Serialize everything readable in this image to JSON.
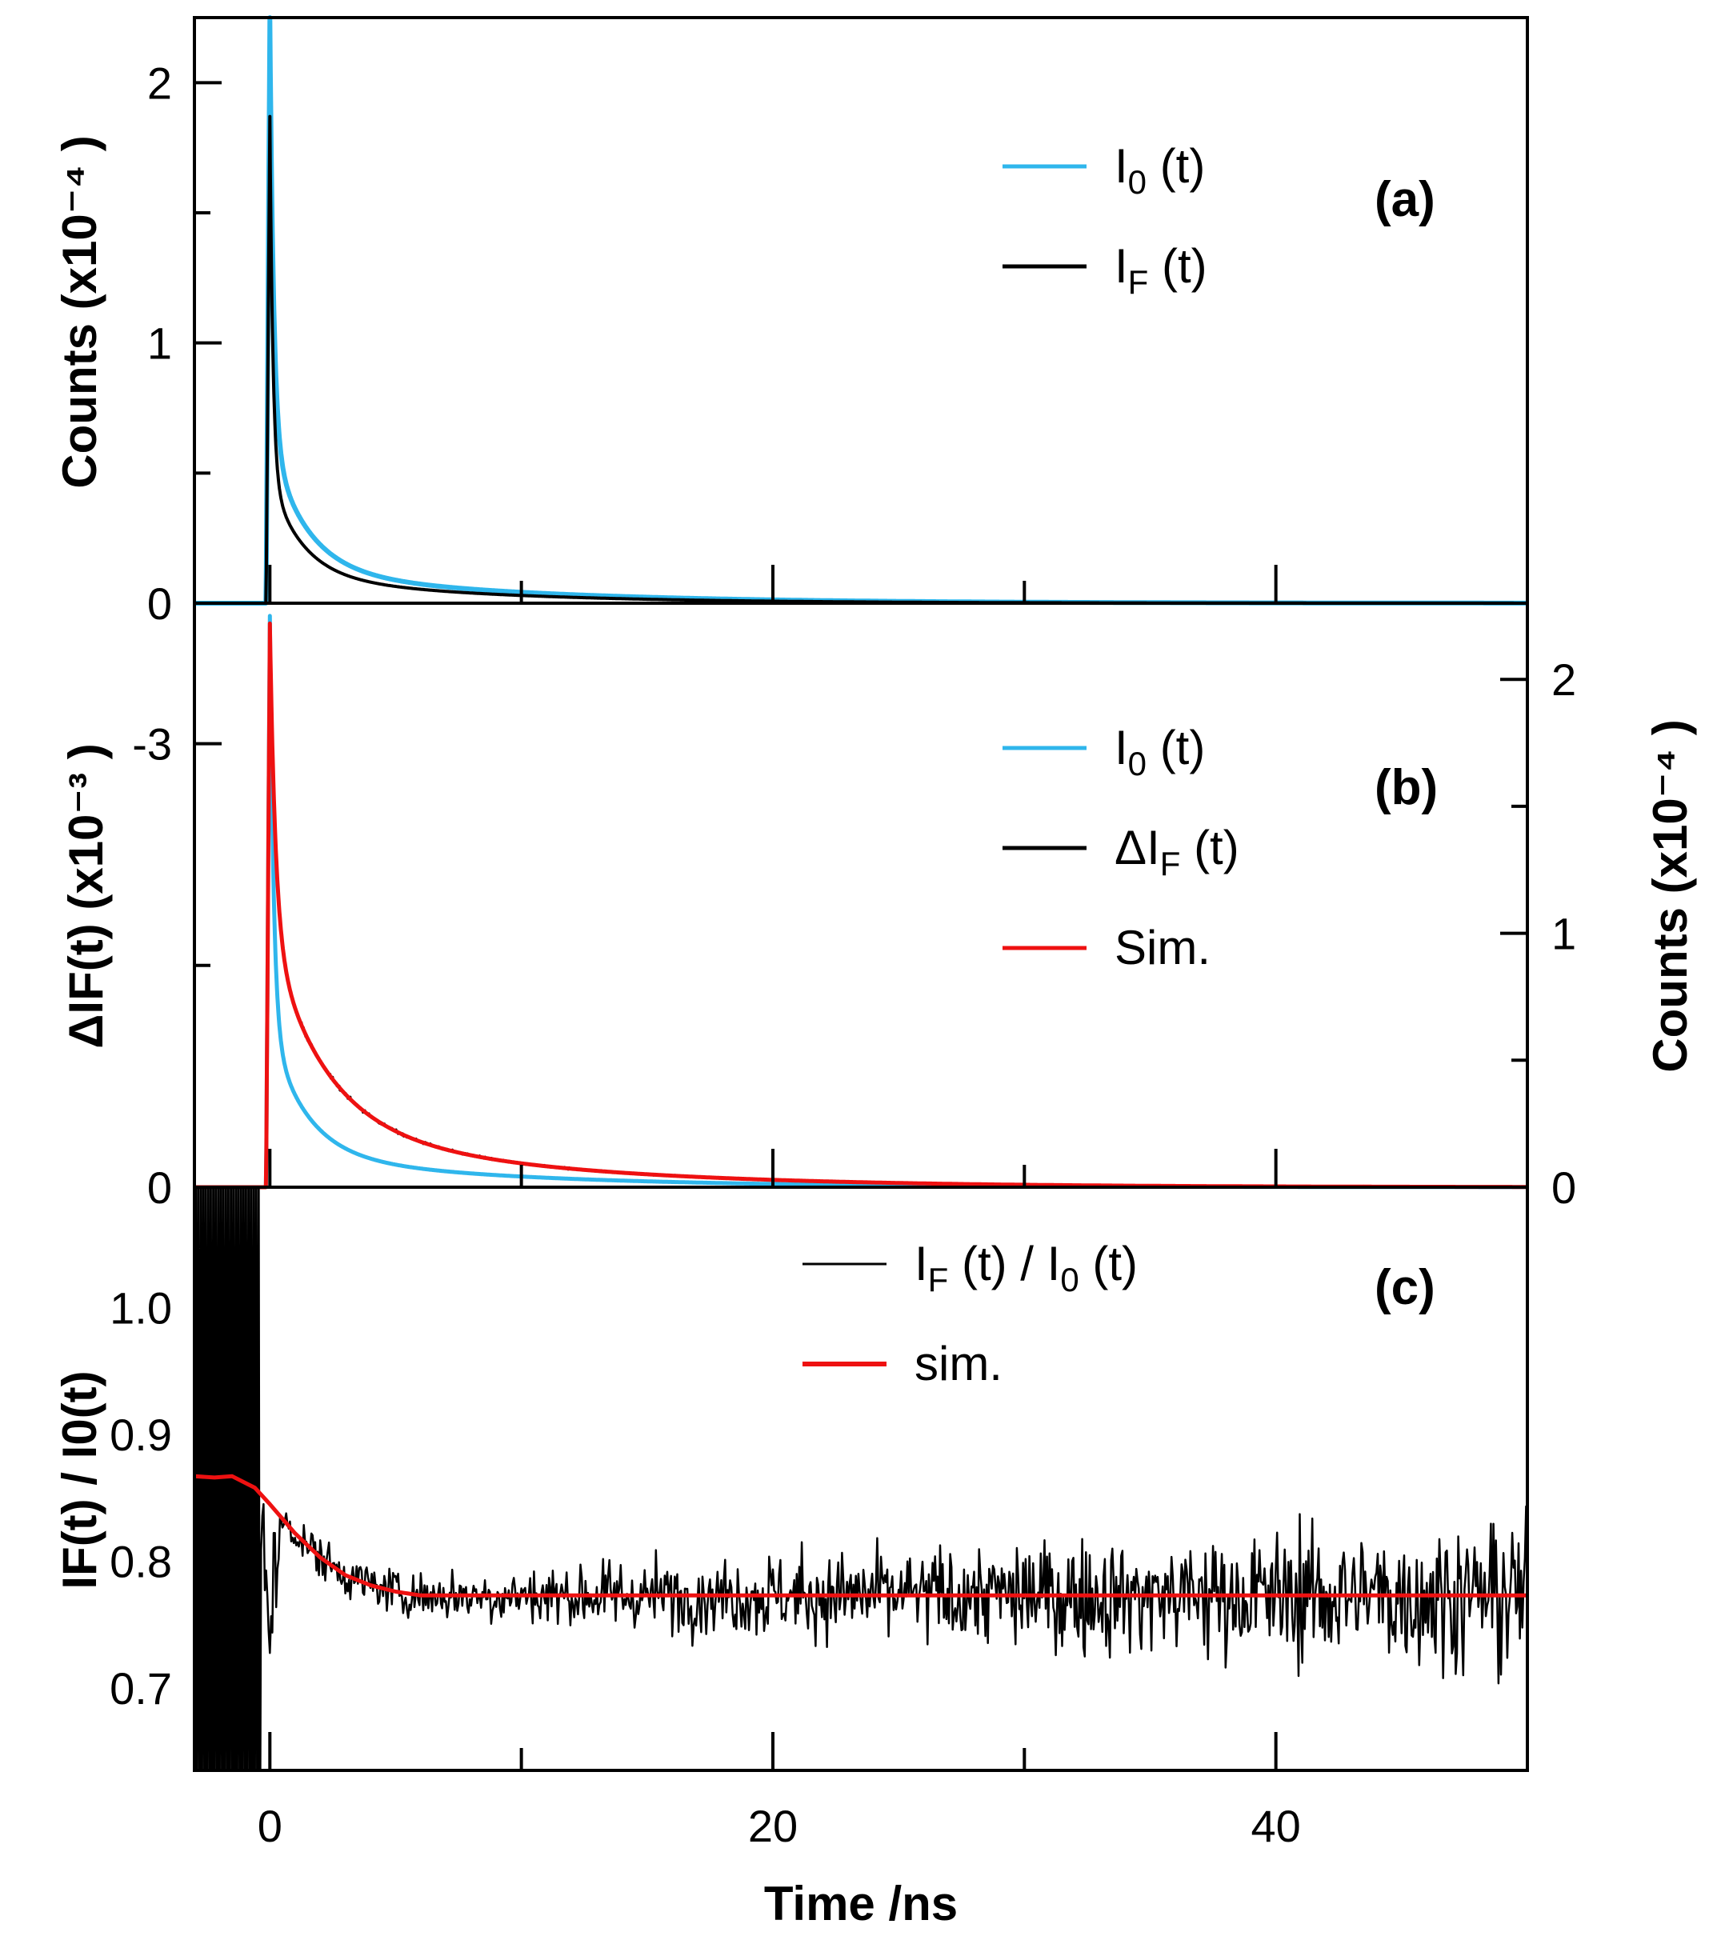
{
  "colors": {
    "I0": "#2fb6ec",
    "IF": "#000000",
    "sim": "#ee1111",
    "axes": "#000000"
  },
  "xaxis": {
    "label": "Time /ns",
    "range": [
      -3,
      50
    ],
    "ticks": [
      0,
      20,
      40
    ],
    "tick_labels": [
      "0",
      "20",
      "40"
    ],
    "minor_ticks": [
      10,
      30
    ]
  },
  "chart_data": [
    {
      "panel": "(a)",
      "type": "line",
      "ylabel": "Counts (x10⁻⁴ )",
      "ylim": [
        0,
        2.25
      ],
      "yticks": [
        0,
        1,
        2
      ],
      "ytick_labels": [
        "0",
        "1",
        "2"
      ],
      "legend": [
        {
          "key": "I0",
          "main": "I",
          "sub": "0",
          "tail": "(t)"
        },
        {
          "key": "IF",
          "main": "I",
          "sub": "F",
          "tail": "(t)"
        }
      ],
      "series": [
        {
          "key": "I0",
          "peak_time": 0,
          "peak": 2.25,
          "decay": [
            [
              0.72,
              0.15
            ],
            [
              0.22,
              1.4
            ],
            [
              0.06,
              8.5
            ]
          ]
        },
        {
          "key": "IF",
          "peak_time": 0,
          "peak": 1.87,
          "decay": [
            [
              0.74,
              0.12
            ],
            [
              0.2,
              1.25
            ],
            [
              0.06,
              7.5
            ]
          ]
        }
      ]
    },
    {
      "panel": "(b)",
      "type": "line",
      "ylabel_left": "ΔIF(t) (x10⁻³ )",
      "ylabel_right": "Counts (x10⁻⁴ )",
      "ylim_left": [
        0,
        -3.95
      ],
      "yticks_left": [
        0,
        -3
      ],
      "ytick_labels_left": [
        "0",
        "-3"
      ],
      "ylim_right": [
        0,
        2.3
      ],
      "yticks_right": [
        0,
        1,
        2
      ],
      "ytick_labels_right": [
        "0",
        "1",
        "2"
      ],
      "legend": [
        {
          "key": "I0",
          "main": "I",
          "sub": "0",
          "tail": "(t)"
        },
        {
          "key": "dIF",
          "main": "ΔI",
          "sub": "F",
          "tail": "(t)"
        },
        {
          "key": "sim",
          "main": "Sim.",
          "sub": "",
          "tail": ""
        }
      ],
      "series": [
        {
          "key": "I0",
          "peak_time": 0,
          "peak": 2.25,
          "decay": [
            [
              0.72,
              0.15
            ],
            [
              0.22,
              1.4
            ],
            [
              0.06,
              8.5
            ]
          ]
        },
        {
          "key": "dIF",
          "peak_time": 0,
          "peak": 2.22,
          "noise": 0.012,
          "decay": [
            [
              0.55,
              0.22
            ],
            [
              0.33,
              2.1
            ],
            [
              0.12,
              9.0
            ]
          ]
        },
        {
          "key": "sim",
          "peak_time": 0,
          "peak": 2.22,
          "decay": [
            [
              0.55,
              0.22
            ],
            [
              0.33,
              2.1
            ],
            [
              0.12,
              9.0
            ]
          ]
        }
      ]
    },
    {
      "panel": "(c)",
      "type": "line",
      "ylabel": "IF(t) / I0(t)",
      "ylim": [
        0.635,
        1.095
      ],
      "yticks": [
        0.7,
        0.8,
        0.9,
        1.0
      ],
      "ytick_labels": [
        "0.7",
        "0.8",
        "0.9",
        "1.0"
      ],
      "legend": [
        {
          "key": "ratio",
          "main": "I",
          "sub": "F",
          "tail": "(t) / ",
          "main2": "I",
          "sub2": "0",
          "tail2": "(t)"
        },
        {
          "key": "sim",
          "main": "sim.",
          "sub": "",
          "tail": ""
        }
      ],
      "series": [
        {
          "key": "ratio",
          "baseline": 0.773,
          "noise_start": 0.012,
          "noise_end": 0.05
        },
        {
          "key": "sim",
          "points": [
            [
              -3,
              0.867
            ],
            [
              -2.2,
              0.866
            ],
            [
              -1.5,
              0.867
            ],
            [
              -0.6,
              0.858
            ],
            [
              0,
              0.845
            ],
            [
              1,
              0.822
            ],
            [
              2,
              0.803
            ],
            [
              3,
              0.789
            ],
            [
              4,
              0.781
            ],
            [
              5,
              0.776
            ],
            [
              6,
              0.773
            ],
            [
              50,
              0.773
            ]
          ]
        }
      ]
    }
  ]
}
